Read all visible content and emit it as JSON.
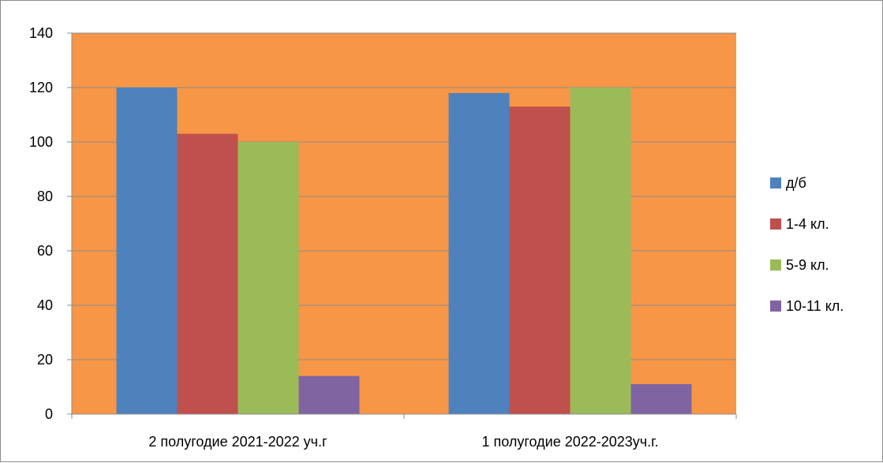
{
  "chart_data": {
    "type": "bar",
    "categories": [
      "2 полугодие 2021-2022 уч.г",
      "1 полугодие 2022-2023уч.г."
    ],
    "series": [
      {
        "name": "д/б",
        "values": [
          120,
          118
        ],
        "color": "#4F81BD"
      },
      {
        "name": "1-4 кл.",
        "values": [
          103,
          113
        ],
        "color": "#C0504D"
      },
      {
        "name": "5-9 кл.",
        "values": [
          100,
          120
        ],
        "color": "#9BBB59"
      },
      {
        "name": "10-11 кл.",
        "values": [
          14,
          11
        ],
        "color": "#8064A2"
      }
    ],
    "ylim": [
      0,
      140
    ],
    "yticks": [
      0,
      20,
      40,
      60,
      80,
      100,
      120,
      140
    ],
    "title": "",
    "xlabel": "",
    "ylabel": "",
    "grid": true,
    "legend_position": "right",
    "plot_background": "#F79646",
    "gridline_color": "#8c8c8c"
  }
}
